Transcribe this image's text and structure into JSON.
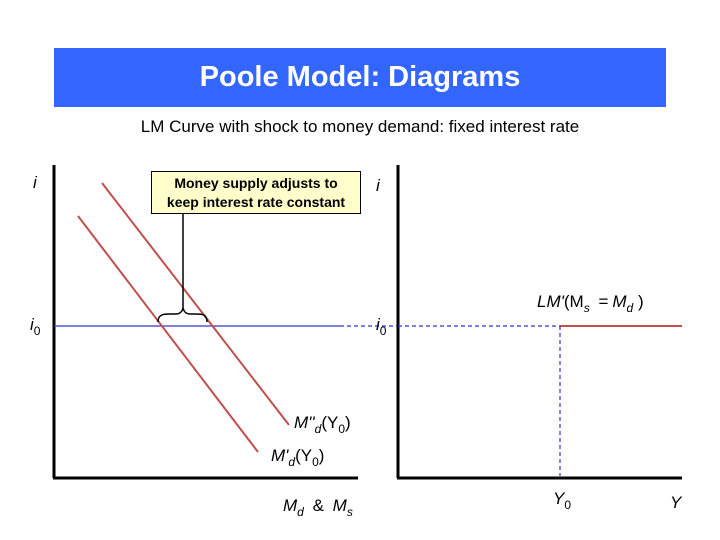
{
  "title": "Poole Model: Diagrams",
  "subtitle": "LM Curve with shock to money demand: fixed interest rate",
  "callout": {
    "line1": "Money supply adjusts to",
    "line2": "keep interest rate constant"
  },
  "left_panel": {
    "y_axis_label": "i",
    "i0_main": "i",
    "i0_sub": "0",
    "x_axis_label_md_main": "M",
    "x_axis_label_md_sub": "d",
    "x_axis_label_amp": "&",
    "x_axis_label_ms_main": "M",
    "x_axis_label_ms_sub": "s",
    "curve_upper_main": "M''",
    "curve_upper_sub": "d",
    "curve_upper_arg": "(Y",
    "curve_upper_arg_sub": "0",
    "curve_upper_close": ")",
    "curve_lower_main": "M'",
    "curve_lower_sub": "d",
    "curve_lower_arg": "(Y",
    "curve_lower_arg_sub": "0",
    "curve_lower_close": ")"
  },
  "right_panel": {
    "y_axis_label": "i",
    "i0_main": "i",
    "i0_sub": "0",
    "x_axis_label": "Y",
    "y0_main": "Y",
    "y0_sub": "0",
    "lm_main": "LM'",
    "lm_paren_open": "(M",
    "lm_s": "s",
    "lm_eq": "=",
    "lm_m": "M",
    "lm_d": "d",
    "lm_close": ")"
  },
  "colors": {
    "title_bar": "#3366ff",
    "curve": "#c0504d",
    "dashed": "#3333cc",
    "callout_bg": "#ffffcc"
  }
}
